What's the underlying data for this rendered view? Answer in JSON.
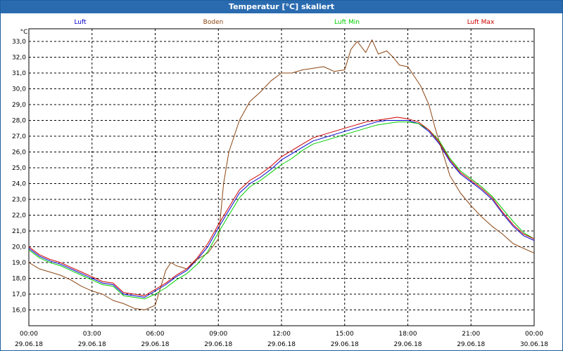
{
  "window": {
    "title": "Temperatur [°C] skaliert"
  },
  "chart_data": {
    "type": "line",
    "title": "Temperatur [°C] skaliert",
    "ylabel": "°C",
    "ylim": [
      15.0,
      33.8
    ],
    "yticks": [
      16.0,
      17.0,
      18.0,
      19.0,
      20.0,
      21.0,
      22.0,
      23.0,
      24.0,
      25.0,
      26.0,
      27.0,
      28.0,
      29.0,
      30.0,
      31.0,
      32.0,
      33.0
    ],
    "ytick_labels": [
      "16,0",
      "17,0",
      "18,0",
      "19,0",
      "20,0",
      "21,0",
      "22,0",
      "23,0",
      "24,0",
      "25,0",
      "26,0",
      "27,0",
      "28,0",
      "29,0",
      "30,0",
      "31,0",
      "32,0",
      "33,0"
    ],
    "xlim": [
      0,
      24
    ],
    "xticks": [
      0,
      3,
      6,
      9,
      12,
      15,
      18,
      21,
      24
    ],
    "xtick_time": [
      "00:00",
      "03:00",
      "06:00",
      "09:00",
      "12:00",
      "15:00",
      "18:00",
      "21:00",
      "00:00"
    ],
    "xtick_date": [
      "29.06.18",
      "29.06.18",
      "29.06.18",
      "29.06.18",
      "29.06.18",
      "29.06.18",
      "29.06.18",
      "29.06.18",
      "30.06.18"
    ],
    "grid": true,
    "series": [
      {
        "name": "Luft",
        "color": "#0000cc",
        "x": [
          0,
          0.5,
          1,
          1.5,
          2,
          2.5,
          3,
          3.5,
          4,
          4.5,
          5,
          5.5,
          6,
          6.5,
          7,
          7.5,
          8,
          8.5,
          9,
          9.5,
          10,
          10.5,
          11,
          11.5,
          12,
          12.5,
          13,
          13.5,
          14,
          14.5,
          15,
          15.5,
          16,
          16.5,
          17,
          17.5,
          18,
          18.5,
          19,
          19.5,
          20,
          20.5,
          21,
          21.5,
          22,
          22.5,
          23,
          23.5,
          24
        ],
        "y": [
          19.9,
          19.4,
          19.1,
          18.9,
          18.6,
          18.3,
          18.0,
          17.7,
          17.6,
          17.0,
          16.9,
          16.8,
          17.2,
          17.6,
          18.1,
          18.5,
          19.2,
          20.0,
          21.2,
          22.3,
          23.4,
          24.0,
          24.4,
          24.9,
          25.5,
          25.9,
          26.3,
          26.7,
          26.9,
          27.1,
          27.3,
          27.5,
          27.7,
          27.9,
          28.0,
          28.0,
          28.0,
          27.8,
          27.3,
          26.5,
          25.4,
          24.6,
          24.1,
          23.6,
          23.0,
          22.1,
          21.3,
          20.7,
          20.4
        ]
      },
      {
        "name": "Boden",
        "color": "#8b4513",
        "x": [
          0,
          0.5,
          1,
          1.5,
          2,
          2.5,
          3,
          3.5,
          4,
          4.5,
          5,
          5.5,
          6,
          6.25,
          6.5,
          6.75,
          7,
          7.5,
          8,
          8.5,
          9,
          9.25,
          9.5,
          10,
          10.5,
          11,
          11.5,
          12,
          12.5,
          13,
          13.5,
          14,
          14.5,
          15,
          15.3,
          15.6,
          16,
          16.3,
          16.6,
          17,
          17.3,
          17.6,
          18,
          18.3,
          18.6,
          19,
          19.3,
          19.6,
          20,
          20.5,
          21,
          21.5,
          22,
          22.5,
          23,
          23.5,
          24
        ],
        "y": [
          19.0,
          18.6,
          18.4,
          18.2,
          17.9,
          17.5,
          17.2,
          17.0,
          16.6,
          16.4,
          16.1,
          16.0,
          16.3,
          17.4,
          18.5,
          19.0,
          18.8,
          18.6,
          19.2,
          19.6,
          20.5,
          24.0,
          26.0,
          28.0,
          29.2,
          29.8,
          30.5,
          31.0,
          31.0,
          31.2,
          31.3,
          31.4,
          31.1,
          31.2,
          32.5,
          33.0,
          32.3,
          33.1,
          32.2,
          32.4,
          32.0,
          31.5,
          31.4,
          30.8,
          30.2,
          29.0,
          27.5,
          26.2,
          24.5,
          23.4,
          22.6,
          21.9,
          21.3,
          20.8,
          20.2,
          19.9,
          19.6
        ]
      },
      {
        "name": "Luft Min",
        "color": "#00cc00",
        "x": [
          0,
          0.5,
          1,
          1.5,
          2,
          2.5,
          3,
          3.5,
          4,
          4.5,
          5,
          5.5,
          6,
          6.5,
          7,
          7.5,
          8,
          8.5,
          9,
          9.5,
          10,
          10.5,
          11,
          11.5,
          12,
          12.5,
          13,
          13.5,
          14,
          14.5,
          15,
          15.5,
          16,
          16.5,
          17,
          17.5,
          18,
          18.5,
          19,
          19.5,
          20,
          20.5,
          21,
          21.5,
          22,
          22.5,
          23,
          23.5,
          24
        ],
        "y": [
          19.8,
          19.3,
          19.0,
          18.8,
          18.5,
          18.2,
          17.9,
          17.6,
          17.5,
          16.9,
          16.8,
          16.7,
          17.0,
          17.4,
          17.9,
          18.3,
          18.9,
          19.7,
          20.9,
          22.0,
          23.1,
          23.8,
          24.2,
          24.7,
          25.2,
          25.6,
          26.1,
          26.5,
          26.7,
          26.9,
          27.1,
          27.3,
          27.5,
          27.7,
          27.8,
          27.9,
          27.9,
          27.8,
          27.4,
          26.7,
          25.6,
          24.8,
          24.3,
          23.8,
          23.2,
          22.4,
          21.6,
          20.9,
          20.5
        ]
      },
      {
        "name": "Luft Max",
        "color": "#cc0000",
        "x": [
          0,
          0.5,
          1,
          1.5,
          2,
          2.5,
          3,
          3.5,
          4,
          4.5,
          5,
          5.5,
          6,
          6.5,
          7,
          7.5,
          8,
          8.5,
          9,
          9.5,
          10,
          10.5,
          11,
          11.5,
          12,
          12.5,
          13,
          13.5,
          14,
          14.5,
          15,
          15.5,
          16,
          16.5,
          17,
          17.5,
          18,
          18.5,
          19,
          19.5,
          20,
          20.5,
          21,
          21.5,
          22,
          22.5,
          23,
          23.5,
          24
        ],
        "y": [
          20.0,
          19.5,
          19.2,
          19.0,
          18.7,
          18.4,
          18.1,
          17.8,
          17.7,
          17.1,
          17.0,
          16.9,
          17.3,
          17.7,
          18.2,
          18.6,
          19.3,
          20.2,
          21.4,
          22.5,
          23.6,
          24.2,
          24.6,
          25.1,
          25.7,
          26.1,
          26.5,
          26.9,
          27.1,
          27.3,
          27.5,
          27.7,
          27.9,
          28.0,
          28.1,
          28.2,
          28.1,
          27.9,
          27.4,
          26.6,
          25.5,
          24.7,
          24.2,
          23.7,
          23.1,
          22.2,
          21.4,
          20.8,
          20.5
        ]
      }
    ]
  }
}
